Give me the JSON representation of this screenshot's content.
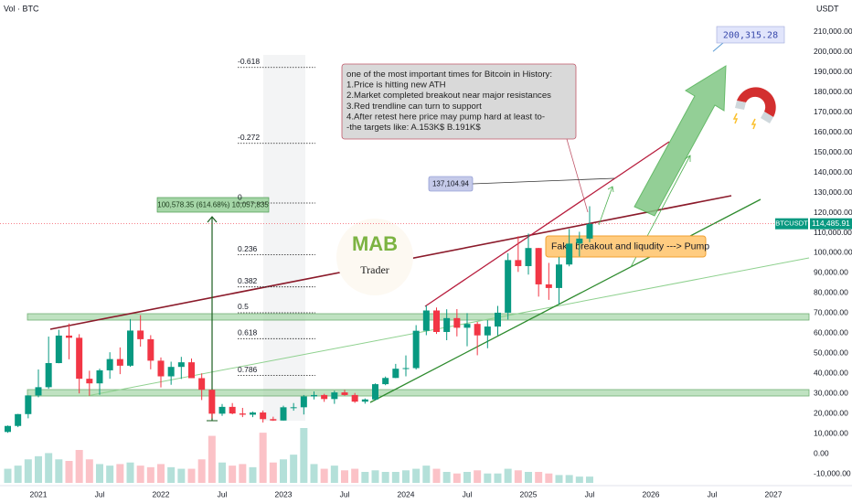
{
  "chart_data": {
    "type": "candlestick",
    "volume_label": "Vol · BTC",
    "currency": "USDT",
    "symbol": "BTCUSDT",
    "last_price": {
      "value": 114485.91,
      "label": "114,485.91"
    },
    "x": [
      "2020-10",
      "2020-11",
      "2020-12",
      "2021-01",
      "2021-02",
      "2021-03",
      "2021-04",
      "2021-05",
      "2021-06",
      "2021-07",
      "2021-08",
      "2021-09",
      "2021-10",
      "2021-11",
      "2021-12",
      "2022-01",
      "2022-02",
      "2022-03",
      "2022-04",
      "2022-05",
      "2022-06",
      "2022-07",
      "2022-08",
      "2022-09",
      "2022-10",
      "2022-11",
      "2022-12",
      "2023-01",
      "2023-02",
      "2023-03",
      "2023-04",
      "2023-05",
      "2023-06",
      "2023-07",
      "2023-08",
      "2023-09",
      "2023-10",
      "2023-11",
      "2023-12",
      "2024-01",
      "2024-02",
      "2024-03",
      "2024-04",
      "2024-05",
      "2024-06",
      "2024-07",
      "2024-08",
      "2024-09",
      "2024-10",
      "2024-11",
      "2024-12",
      "2025-01",
      "2025-02",
      "2025-03",
      "2025-04",
      "2025-05",
      "2025-06",
      "2025-07"
    ],
    "open": [
      10800,
      13800,
      19700,
      29000,
      33100,
      45100,
      58800,
      57700,
      37300,
      35000,
      41500,
      47100,
      43800,
      61300,
      57000,
      46300,
      38500,
      43200,
      45500,
      37600,
      31800,
      19900,
      23300,
      20000,
      19400,
      20500,
      17200,
      16500,
      23100,
      23100,
      28500,
      29200,
      27200,
      30500,
      29200,
      25900,
      27000,
      34600,
      37700,
      42300,
      42600,
      61200,
      71300,
      60600,
      67500,
      62700,
      64600,
      58900,
      63300,
      70200,
      96400,
      93400,
      102400,
      84300,
      82500,
      94200,
      104600,
      107100
    ],
    "high": [
      14000,
      19800,
      29000,
      41900,
      58300,
      61700,
      64800,
      59500,
      41300,
      42300,
      50500,
      52900,
      67000,
      69000,
      59000,
      47900,
      45800,
      48200,
      47400,
      40000,
      31900,
      24700,
      25200,
      22800,
      20900,
      21500,
      18400,
      23900,
      25200,
      29200,
      31000,
      29800,
      31400,
      31800,
      30200,
      27500,
      35000,
      38400,
      44700,
      48900,
      64000,
      73800,
      72800,
      71900,
      72000,
      70000,
      65600,
      66500,
      73600,
      99800,
      108300,
      109600,
      102500,
      95000,
      97900,
      111900,
      110500,
      123200
    ],
    "low": [
      10400,
      13200,
      17600,
      28100,
      32300,
      45000,
      47000,
      30000,
      28800,
      29300,
      37300,
      39600,
      43300,
      53300,
      42000,
      33000,
      34300,
      37200,
      37600,
      26700,
      17600,
      18800,
      19600,
      18200,
      18200,
      15500,
      16300,
      16500,
      21400,
      19500,
      27000,
      25800,
      24800,
      28900,
      25300,
      24900,
      26500,
      34100,
      37600,
      38500,
      41900,
      59000,
      59600,
      56500,
      58400,
      53500,
      49000,
      52500,
      58900,
      66800,
      90500,
      89200,
      78200,
      76600,
      74400,
      93300,
      98200,
      105300
    ],
    "close": [
      13800,
      19700,
      29000,
      33100,
      45100,
      58800,
      57700,
      37300,
      35000,
      41500,
      47100,
      43800,
      61300,
      57000,
      46300,
      38500,
      43200,
      45500,
      37600,
      31800,
      19900,
      23300,
      20000,
      19400,
      20500,
      17200,
      16500,
      23100,
      23100,
      28500,
      29200,
      27200,
      30500,
      29200,
      25900,
      27000,
      34600,
      37700,
      42300,
      42600,
      61200,
      71300,
      60600,
      67500,
      62700,
      64600,
      58900,
      63300,
      70200,
      96400,
      93400,
      102400,
      84300,
      82500,
      94200,
      104600,
      107100,
      114486
    ],
    "volume": [
      18,
      22,
      30,
      34,
      38,
      30,
      28,
      42,
      30,
      24,
      22,
      24,
      26,
      22,
      20,
      24,
      20,
      18,
      18,
      30,
      60,
      26,
      22,
      24,
      20,
      64,
      26,
      30,
      36,
      70,
      24,
      18,
      22,
      16,
      18,
      14,
      16,
      14,
      14,
      16,
      18,
      22,
      18,
      14,
      12,
      14,
      16,
      12,
      12,
      18,
      16,
      14,
      14,
      12,
      10,
      10,
      8,
      8
    ],
    "ylim": [
      -10000,
      220000
    ],
    "yticks": [
      {
        "value": -10000,
        "label": "-10,000.00"
      },
      {
        "value": 0,
        "label": "0.00"
      },
      {
        "value": 10000,
        "label": "10,000.00"
      },
      {
        "value": 20000,
        "label": "20,000.00"
      },
      {
        "value": 30000,
        "label": "30,000.00"
      },
      {
        "value": 40000,
        "label": "40,000.00"
      },
      {
        "value": 50000,
        "label": "50,000.00"
      },
      {
        "value": 60000,
        "label": "60,000.00"
      },
      {
        "value": 70000,
        "label": "70,000.00"
      },
      {
        "value": 80000,
        "label": "80,000.00"
      },
      {
        "value": 90000,
        "label": "90,000.00"
      },
      {
        "value": 100000,
        "label": "100,000.00"
      },
      {
        "value": 110000,
        "label": "110,000.00"
      },
      {
        "value": 120000,
        "label": "120,000.00"
      },
      {
        "value": 130000,
        "label": "130,000.00"
      },
      {
        "value": 140000,
        "label": "140,000.00"
      },
      {
        "value": 150000,
        "label": "150,000.00"
      },
      {
        "value": 160000,
        "label": "160,000.00"
      },
      {
        "value": 170000,
        "label": "170,000.00"
      },
      {
        "value": 180000,
        "label": "180,000.00"
      },
      {
        "value": 190000,
        "label": "190,000.00"
      },
      {
        "value": 200000,
        "label": "200,000.00"
      },
      {
        "value": 210000,
        "label": "210,000.00"
      }
    ],
    "xticks": [
      {
        "value": "2021-01",
        "label": "2021"
      },
      {
        "value": "2021-07",
        "label": "Jul"
      },
      {
        "value": "2022-01",
        "label": "2022"
      },
      {
        "value": "2022-07",
        "label": "Jul"
      },
      {
        "value": "2023-01",
        "label": "2023"
      },
      {
        "value": "2023-07",
        "label": "Jul"
      },
      {
        "value": "2024-01",
        "label": "2024"
      },
      {
        "value": "2024-07",
        "label": "Jul"
      },
      {
        "value": "2025-01",
        "label": "2025"
      },
      {
        "value": "2025-07",
        "label": "Jul"
      },
      {
        "value": "2026-01",
        "label": "2026"
      },
      {
        "value": "2026-07",
        "label": "Jul"
      },
      {
        "value": "2027-01",
        "label": "2027"
      }
    ],
    "up_color": "#089981",
    "down_color": "#f23645",
    "fib": {
      "high": 124800,
      "low": 15520,
      "levels": [
        -0.618,
        -0.272,
        0,
        0.236,
        0.382,
        0.5,
        0.618,
        0.786
      ]
    },
    "annotations": {
      "note_lines": [
        "one of the most important times for Bitcoin in History:",
        "1.Price is hitting new ATH",
        "2.Market completed breakout near major resistances",
        "3.Red trendline can turn to support",
        "4.After retest here price may pump hard at least to-",
        "-the targets like: A.153K$ B.191K$"
      ],
      "fake_breakout": "Fake breakout and liqudity ---> Pump",
      "measure": "100,578.35 (614.68%) 10,057,835",
      "target": {
        "value": 200315.28,
        "label": "200,315.28"
      },
      "level": {
        "value": 137104.94,
        "label": "137,104.94"
      },
      "logo": "MAB",
      "logo_sub": "Trader"
    }
  }
}
